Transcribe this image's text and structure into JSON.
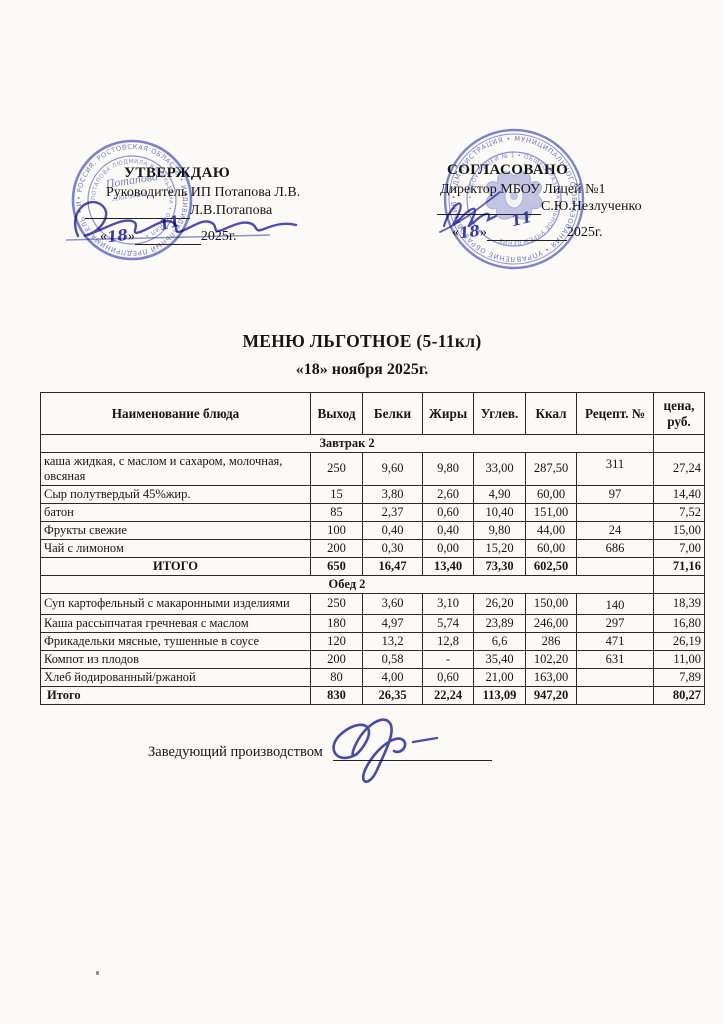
{
  "colors": {
    "stamp_blue": "#4a51c4",
    "ink_blue": "#3b3bae",
    "paper": "#fbfaf6",
    "text": "#161616"
  },
  "chars": {
    "laquo": "«",
    "raquo": "»"
  },
  "approvals": {
    "left": {
      "heading": "УТВЕРЖДАЮ",
      "role": "Руководитель ИП Потапова Л.В.",
      "name": "Л.В.Потапова",
      "day": "18",
      "month": "11",
      "year": "2025г."
    },
    "right": {
      "heading": "СОГЛАСОВАНО",
      "role": "Директор МБОУ Лицей №1",
      "name": "С.Ю.Незлученко",
      "day": "18",
      "month": "11",
      "year": "2025г."
    }
  },
  "stamps": {
    "left": {
      "ring_outer": "• РОССИЯ, РОСТОВСКАЯ ОБЛАСТЬ • ИНДИВИДУАЛЬНЫЙ ПРЕДПРИНИМАТЕЛЬ • ИНН •",
      "ring_inner": "ПОТАПОВА ЛЮДМИЛА ВАСИЛЬЕВНА • ОГРНИП •",
      "center_script": "Потапова",
      "center_script2": "Людмила"
    },
    "right": {
      "ring_outer": "• АДМИНИСТРАЦИЯ • МУНИЦИПАЛЬНОГО ОБРАЗОВАНИЯ • УПРАВЛЕНИЕ ОБРАЗОВАНИЯ •",
      "ring_inner": "• МБОУ ЛИЦЕЙ № 1 • ОБЩЕОБРАЗОВАТЕЛЬНОЕ УЧРЕЖДЕНИЕ"
    }
  },
  "title": {
    "line1": "МЕНЮ ЛЬГОТНОЕ (5-11кл)",
    "line2": "«18» ноября 2025г."
  },
  "table": {
    "headers": [
      "Наименование блюда",
      "Выход",
      "Белки",
      "Жиры",
      "Углев.",
      "Ккал",
      "Рецепт. №",
      "цена, руб."
    ],
    "sections": [
      {
        "label": "Завтрак 2",
        "rows": [
          {
            "name": "каша жидкая, с маслом и сахаром, молочная, овсяная",
            "out": "250",
            "protein": "9,60",
            "fat": "9,80",
            "carb": "33,00",
            "kcal": "287,50",
            "recipe": "311",
            "price": "27,24",
            "tall": true
          },
          {
            "name": "Сыр полутвердый 45%жир.",
            "out": "15",
            "protein": "3,80",
            "fat": "2,60",
            "carb": "4,90",
            "kcal": "60,00",
            "recipe": "97",
            "price": "14,40"
          },
          {
            "name": "батон",
            "out": "85",
            "protein": "2,37",
            "fat": "0,60",
            "carb": "10,40",
            "kcal": "151,00",
            "recipe": "",
            "price": "7,52"
          },
          {
            "name": "Фрукты свежие",
            "out": "100",
            "protein": "0,40",
            "fat": "0,40",
            "carb": "9,80",
            "kcal": "44,00",
            "recipe": "24",
            "price": "15,00"
          },
          {
            "name": "Чай с лимоном",
            "out": "200",
            "protein": "0,30",
            "fat": "0,00",
            "carb": "15,20",
            "kcal": "60,00",
            "recipe": "686",
            "price": "7,00"
          }
        ],
        "total": {
          "label": "ИТОГО",
          "out": "650",
          "protein": "16,47",
          "fat": "13,40",
          "carb": "73,30",
          "kcal": "602,50",
          "recipe": "",
          "price": "71,16",
          "align": "center"
        }
      },
      {
        "label": "Обед 2",
        "rows": [
          {
            "name": "Суп картофельный  с макаронными изделиями",
            "out": "250",
            "protein": "3,60",
            "fat": "3,10",
            "carb": "26,20",
            "kcal": "150,00",
            "recipe": "140",
            "price": "18,39",
            "tall": true
          },
          {
            "name": "Каша рассыпчатая гречневая с маслом",
            "out": "180",
            "protein": "4,97",
            "fat": "5,74",
            "carb": "23,89",
            "kcal": "246,00",
            "recipe": "297",
            "price": "16,80"
          },
          {
            "name": "Фрикадельки мясные, тушенные в соусе",
            "out": "120",
            "protein": "13,2",
            "fat": "12,8",
            "carb": "6,6",
            "kcal": "286",
            "recipe": "471",
            "price": "26,19"
          },
          {
            "name": "Компот из плодов",
            "out": "200",
            "protein": "0,58",
            "fat": "-",
            "carb": "35,40",
            "kcal": "102,20",
            "recipe": "631",
            "price": "11,00"
          },
          {
            "name": "Хлеб йодированный/ржаной",
            "out": "80",
            "protein": "4,00",
            "fat": "0,60",
            "carb": "21,00",
            "kcal": "163,00",
            "recipe": "",
            "price": "7,89"
          }
        ],
        "total": {
          "label": "Итого",
          "out": "830",
          "protein": "26,35",
          "fat": "22,24",
          "carb": "113,09",
          "kcal": "947,20",
          "recipe": "",
          "price": "80,27",
          "align": "left"
        }
      }
    ]
  },
  "footer": {
    "label": "Заведующий производством"
  }
}
